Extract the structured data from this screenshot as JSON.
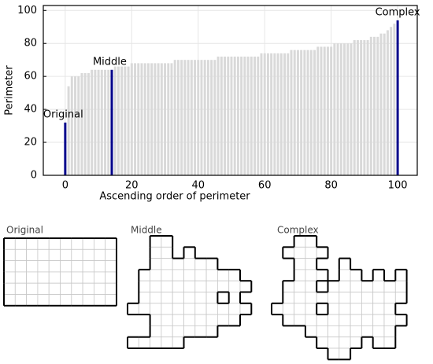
{
  "chart_data": {
    "type": "bar",
    "xlabel": "Ascending order of perimeter",
    "ylabel": "Perimeter",
    "x": [
      0,
      1,
      2,
      3,
      4,
      5,
      6,
      7,
      8,
      9,
      10,
      11,
      12,
      13,
      14,
      15,
      16,
      17,
      18,
      19,
      20,
      21,
      22,
      23,
      24,
      25,
      26,
      27,
      28,
      29,
      30,
      31,
      32,
      33,
      34,
      35,
      36,
      37,
      38,
      39,
      40,
      41,
      42,
      43,
      44,
      45,
      46,
      47,
      48,
      49,
      50,
      51,
      52,
      53,
      54,
      55,
      56,
      57,
      58,
      59,
      60,
      61,
      62,
      63,
      64,
      65,
      66,
      67,
      68,
      69,
      70,
      71,
      72,
      73,
      74,
      75,
      76,
      77,
      78,
      79,
      80,
      81,
      82,
      83,
      84,
      85,
      86,
      87,
      88,
      89,
      90,
      91,
      92,
      93,
      94,
      95,
      96,
      97,
      98,
      99,
      100
    ],
    "values": [
      32,
      54,
      60,
      60,
      60,
      62,
      62,
      62,
      64,
      64,
      64,
      64,
      64,
      64,
      64,
      66,
      66,
      66,
      66,
      66,
      68,
      68,
      68,
      68,
      68,
      68,
      68,
      68,
      68,
      68,
      68,
      68,
      68,
      70,
      70,
      70,
      70,
      70,
      70,
      70,
      70,
      70,
      70,
      70,
      70,
      70,
      72,
      72,
      72,
      72,
      72,
      72,
      72,
      72,
      72,
      72,
      72,
      72,
      72,
      74,
      74,
      74,
      74,
      74,
      74,
      74,
      74,
      74,
      76,
      76,
      76,
      76,
      76,
      76,
      76,
      76,
      78,
      78,
      78,
      78,
      78,
      80,
      80,
      80,
      80,
      80,
      80,
      82,
      82,
      82,
      82,
      82,
      84,
      84,
      84,
      86,
      86,
      88,
      90,
      92,
      94
    ],
    "color": "#d9d9d9",
    "highlight_color": "#00008b",
    "annotations": [
      {
        "text": "Original",
        "index": 0
      },
      {
        "text": "Middle",
        "index": 14
      },
      {
        "text": "Complex",
        "index": 100
      }
    ],
    "xlim": [
      -6.6,
      105.9
    ],
    "ylim": [
      0,
      103
    ],
    "xticks": [
      0,
      20,
      40,
      60,
      80,
      100
    ],
    "yticks": [
      0,
      20,
      40,
      60,
      80,
      100
    ],
    "grid": true
  },
  "shapes": [
    {
      "label": "Original"
    },
    {
      "label": "Middle"
    },
    {
      "label": "Complex"
    }
  ]
}
